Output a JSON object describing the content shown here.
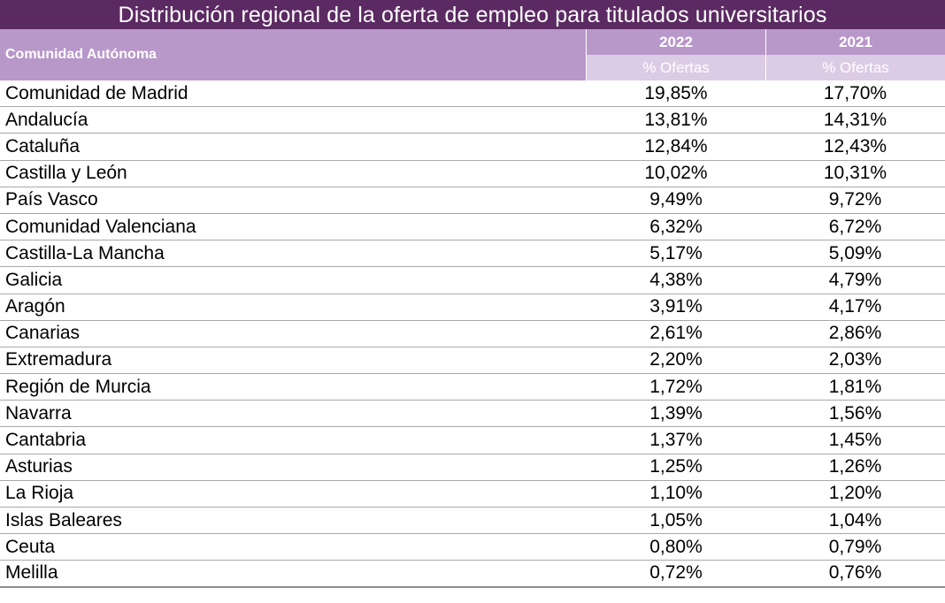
{
  "chart_data": {
    "type": "table",
    "title": "Distribución regional de la oferta de empleo para titulados universitarios",
    "columns": {
      "region_header": "Comunidad Autónoma",
      "years": [
        "2022",
        "2021"
      ],
      "sub_header": "% Ofertas"
    },
    "rows": [
      {
        "region": "Comunidad de Madrid",
        "v2022": "19,85%",
        "v2021": "17,70%"
      },
      {
        "region": "Andalucía",
        "v2022": "13,81%",
        "v2021": "14,31%"
      },
      {
        "region": "Cataluña",
        "v2022": "12,84%",
        "v2021": "12,43%"
      },
      {
        "region": "Castilla y León",
        "v2022": "10,02%",
        "v2021": "10,31%"
      },
      {
        "region": "País Vasco",
        "v2022": "9,49%",
        "v2021": "9,72%"
      },
      {
        "region": "Comunidad Valenciana",
        "v2022": "6,32%",
        "v2021": "6,72%"
      },
      {
        "region": "Castilla-La Mancha",
        "v2022": "5,17%",
        "v2021": "5,09%"
      },
      {
        "region": "Galicia",
        "v2022": "4,38%",
        "v2021": "4,79%"
      },
      {
        "region": "Aragón",
        "v2022": "3,91%",
        "v2021": "4,17%"
      },
      {
        "region": "Canarias",
        "v2022": "2,61%",
        "v2021": "2,86%"
      },
      {
        "region": "Extremadura",
        "v2022": "2,20%",
        "v2021": "2,03%"
      },
      {
        "region": "Región de Murcia",
        "v2022": "1,72%",
        "v2021": "1,81%"
      },
      {
        "region": "Navarra",
        "v2022": "1,39%",
        "v2021": "1,56%"
      },
      {
        "region": "Cantabria",
        "v2022": "1,37%",
        "v2021": "1,45%"
      },
      {
        "region": "Asturias",
        "v2022": "1,25%",
        "v2021": "1,26%"
      },
      {
        "region": "La Rioja",
        "v2022": "1,10%",
        "v2021": "1,20%"
      },
      {
        "region": "Islas Baleares",
        "v2022": "1,05%",
        "v2021": "1,04%"
      },
      {
        "region": "Ceuta",
        "v2022": "0,80%",
        "v2021": "0,79%"
      },
      {
        "region": "Melilla",
        "v2022": "0,72%",
        "v2021": "0,76%"
      }
    ]
  },
  "colors": {
    "title_bg": "#5c2a63",
    "header_bg": "#b897c9",
    "subheader_bg": "#dccbe5"
  }
}
